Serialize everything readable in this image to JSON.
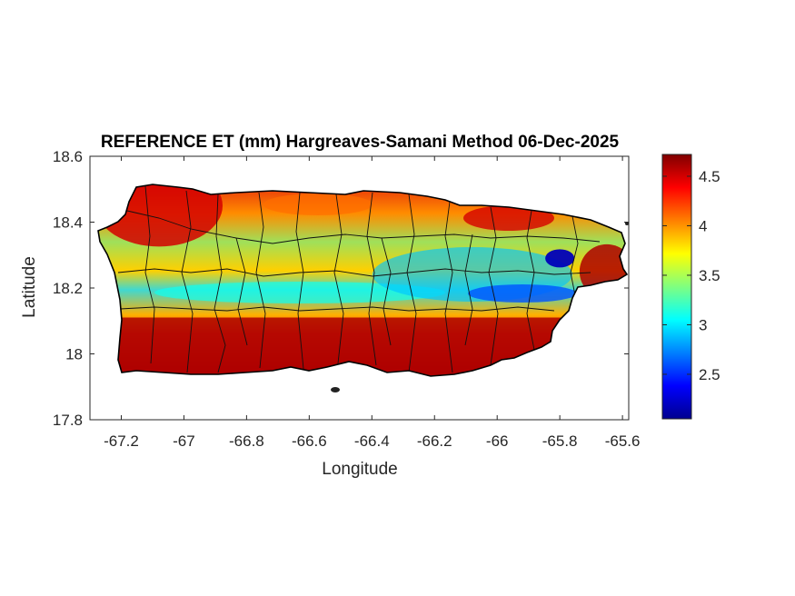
{
  "chart_data": {
    "type": "heatmap",
    "title": "REFERENCE ET (mm) Hargreaves-Samani Method  06-Dec-2025",
    "xlabel": "Longitude",
    "ylabel": "Latitude",
    "xlim": [
      -67.3,
      -65.58
    ],
    "ylim": [
      17.8,
      18.6
    ],
    "xticks": [
      -67.2,
      -67,
      -66.8,
      -66.6,
      -66.4,
      -66.2,
      -66,
      -65.8,
      -65.6
    ],
    "yticks": [
      17.8,
      18,
      18.2,
      18.4,
      18.6
    ],
    "colorbar": {
      "colormap": "jet",
      "range": [
        2.05,
        4.72
      ],
      "ticks": [
        2.5,
        3,
        3.5,
        4,
        4.5
      ]
    },
    "regions": [
      {
        "area": "south coast",
        "lat": 18.0,
        "value": 4.6
      },
      {
        "area": "northwest coast",
        "lat": 18.45,
        "value": 4.5
      },
      {
        "area": "central band",
        "lat": 18.2,
        "value": 3.4
      },
      {
        "area": "northeast highlands",
        "lat": 18.29,
        "lon": -65.8,
        "value": 2.2
      },
      {
        "area": "east coast",
        "lat": 18.25,
        "lon": -65.65,
        "value": 4.6
      }
    ]
  }
}
